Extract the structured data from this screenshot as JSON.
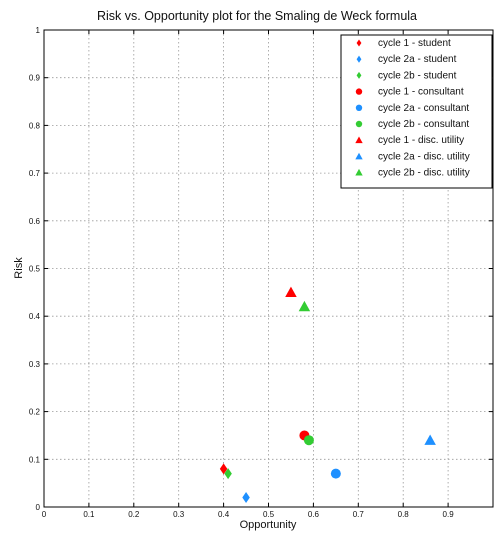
{
  "chart_data": {
    "type": "scatter",
    "title": "Risk vs. Opportunity plot for the Smaling de Weck formula",
    "xlabel": "Opportunity",
    "ylabel": "Risk",
    "xlim": [
      0,
      1
    ],
    "ylim": [
      0,
      1
    ],
    "x_ticks": [
      "0",
      "0.1",
      "0.2",
      "0.3",
      "0.4",
      "0.5",
      "0.6",
      "0.7",
      "0.8",
      "0.9"
    ],
    "y_ticks": [
      "0",
      "0.1",
      "0.2",
      "0.3",
      "0.4",
      "0.5",
      "0.6",
      "0.7",
      "0.8",
      "0.9",
      "1"
    ],
    "grid": true,
    "legend_position": "top-right",
    "series": [
      {
        "name": "cycle 1 - student",
        "marker": "diamond",
        "color": "#ff0000",
        "x": [
          0.4
        ],
        "y": [
          0.08
        ]
      },
      {
        "name": "cycle 2a - student",
        "marker": "diamond",
        "color": "#1e90ff",
        "x": [
          0.45
        ],
        "y": [
          0.02
        ]
      },
      {
        "name": "cycle 2b - student",
        "marker": "diamond",
        "color": "#33cc33",
        "x": [
          0.41
        ],
        "y": [
          0.07
        ]
      },
      {
        "name": "cycle 1 - consultant",
        "marker": "circle",
        "color": "#ff0000",
        "x": [
          0.58
        ],
        "y": [
          0.15
        ]
      },
      {
        "name": "cycle 2a - consultant",
        "marker": "circle",
        "color": "#1e90ff",
        "x": [
          0.65
        ],
        "y": [
          0.07
        ]
      },
      {
        "name": "cycle 2b - consultant",
        "marker": "circle",
        "color": "#33cc33",
        "x": [
          0.59
        ],
        "y": [
          0.14
        ]
      },
      {
        "name": "cycle 1 - disc. utility",
        "marker": "triangle",
        "color": "#ff0000",
        "x": [
          0.55
        ],
        "y": [
          0.45
        ]
      },
      {
        "name": "cycle 2a - disc. utility",
        "marker": "triangle",
        "color": "#1e90ff",
        "x": [
          0.86
        ],
        "y": [
          0.14
        ]
      },
      {
        "name": "cycle 2b - disc. utility",
        "marker": "triangle",
        "color": "#33cc33",
        "x": [
          0.58
        ],
        "y": [
          0.42
        ]
      }
    ]
  }
}
